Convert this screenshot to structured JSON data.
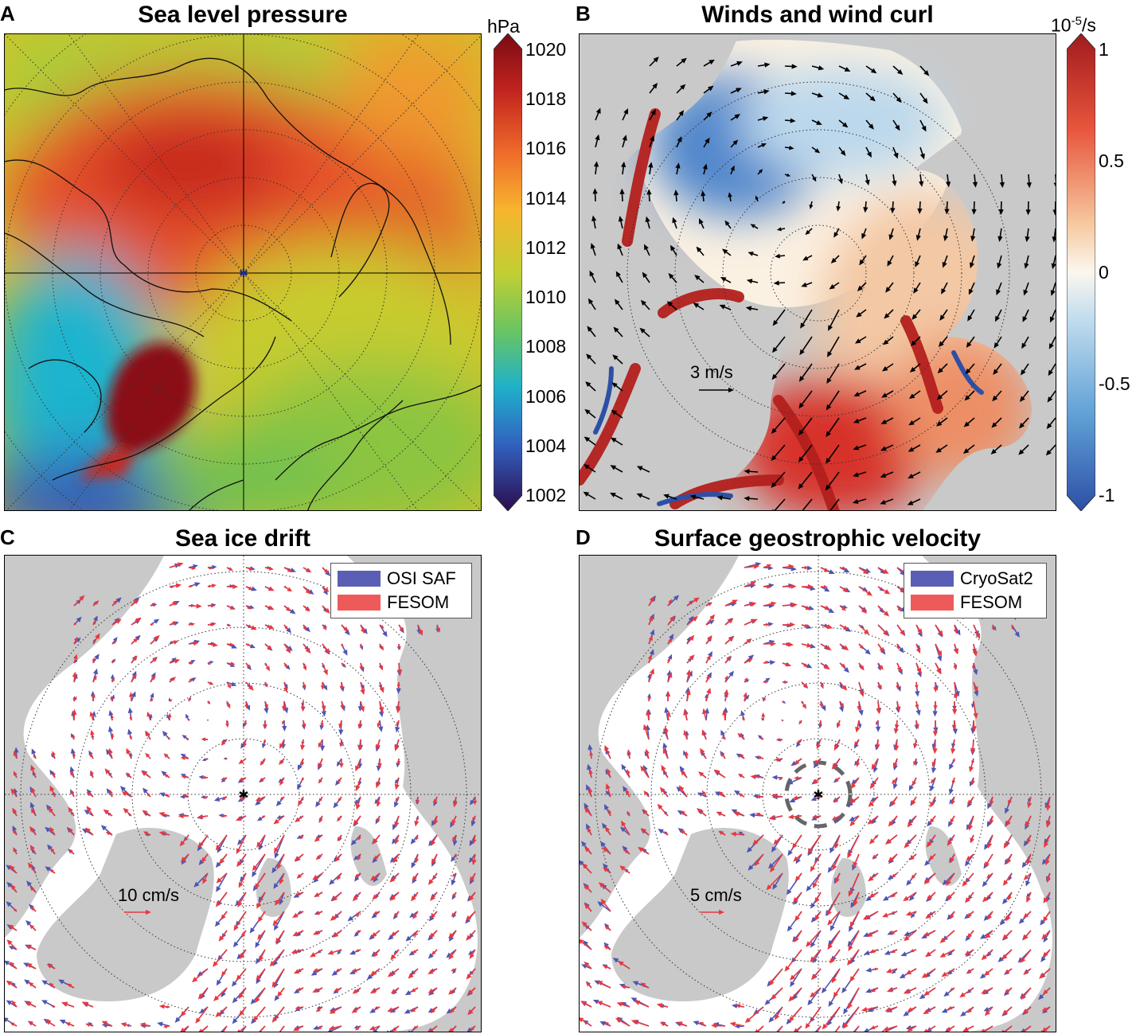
{
  "panels": {
    "A": {
      "letter": "A",
      "title": "Sea level pressure"
    },
    "B": {
      "letter": "B",
      "title": "Winds and wind curl",
      "scale_label": "3 m/s"
    },
    "C": {
      "letter": "C",
      "title": "Sea ice drift",
      "scale_label": "10 cm/s"
    },
    "D": {
      "letter": "D",
      "title": "Surface geostrophic velocity",
      "scale_label": "5 cm/s"
    }
  },
  "colorbar_a": {
    "unit": "hPa",
    "ticks": [
      "1020",
      "1018",
      "1016",
      "1014",
      "1012",
      "1010",
      "1008",
      "1006",
      "1004",
      "1002"
    ]
  },
  "colorbar_b": {
    "unit_base": "10",
    "unit_exp": "-5",
    "unit_tail": "/s",
    "ticks": [
      "1",
      "0.5",
      "0",
      "-0.5",
      "-1"
    ]
  },
  "legend_c": {
    "items": [
      {
        "label": "OSI SAF",
        "color": "#5a5fb5"
      },
      {
        "label": "FESOM",
        "color": "#ee5a5a"
      }
    ]
  },
  "legend_d": {
    "items": [
      {
        "label": "CryoSat2",
        "color": "#5a5fb5"
      },
      {
        "label": "FESOM",
        "color": "#ee5a5a"
      }
    ]
  },
  "colors": {
    "land": "#c9c9c9",
    "ocean": "#ffffff",
    "obs": "#4f55b3",
    "model": "#e8393f"
  },
  "chart_data": [
    {
      "type": "heatmap",
      "title": "Sea level pressure",
      "unit": "hPa",
      "colorbar_range": [
        1002,
        1020
      ],
      "colorbar_ticks": [
        1002,
        1004,
        1006,
        1008,
        1010,
        1012,
        1014,
        1016,
        1018,
        1020
      ]
    },
    {
      "type": "heatmap",
      "title": "Winds and wind curl",
      "unit": "10^-5/s",
      "colorbar_range": [
        -1,
        1
      ],
      "colorbar_ticks": [
        -1,
        -0.5,
        0,
        0.5,
        1
      ],
      "reference_vector": "3 m/s"
    },
    {
      "type": "scatter",
      "title": "Sea ice drift",
      "legend": [
        "OSI SAF",
        "FESOM"
      ],
      "legend_position": "top-right",
      "reference_vector": "10 cm/s"
    },
    {
      "type": "scatter",
      "title": "Surface geostrophic velocity",
      "legend": [
        "CryoSat2",
        "FESOM"
      ],
      "legend_position": "top-right",
      "reference_vector": "5 cm/s"
    }
  ]
}
